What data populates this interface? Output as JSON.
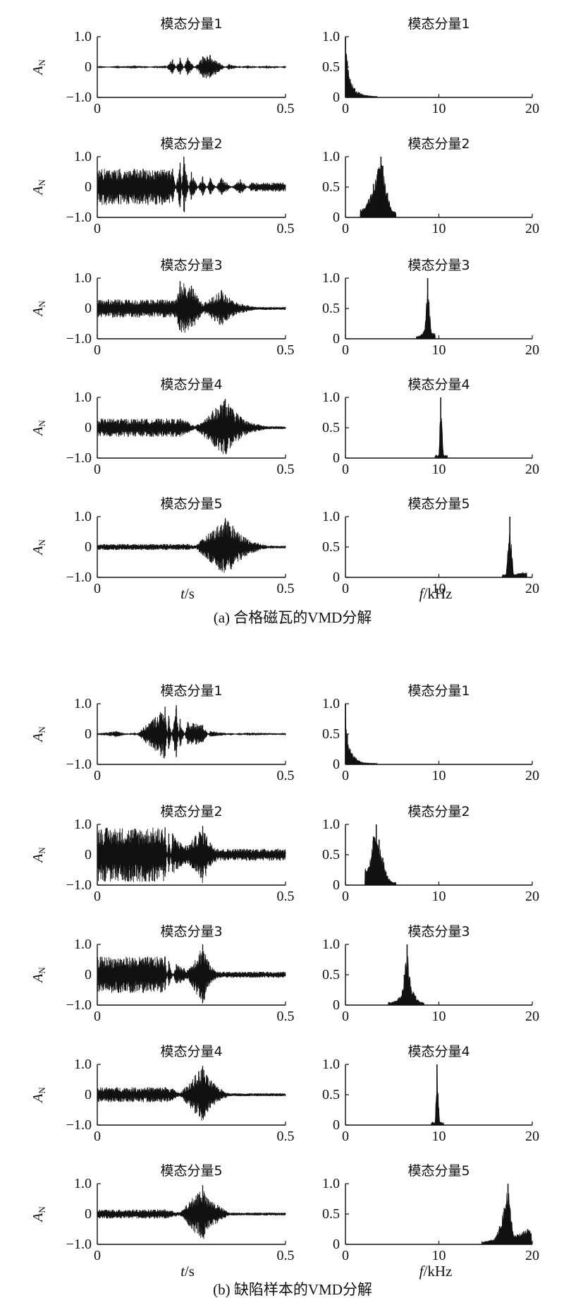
{
  "figure": {
    "caption_a": "(a) 合格磁瓦的VMD分解",
    "caption_b": "(b) 缺陷样本的VMD分解",
    "time_xlabel": {
      "var": "t",
      "unit": "/s"
    },
    "freq_xlabel": {
      "var": "f",
      "unit": "/kHz"
    },
    "ylabel": {
      "main": "A",
      "sub": "N"
    }
  },
  "chart_data": [
    {
      "type": "line",
      "group": "a",
      "title": "模态分量1",
      "x": [
        0,
        0.1,
        0.18,
        0.2,
        0.22,
        0.24,
        0.28,
        0.3,
        0.35,
        0.4,
        0.45,
        0.5
      ],
      "values": [
        0.02,
        -0.05,
        0.05,
        -0.25,
        0.3,
        -0.3,
        0.35,
        0.4,
        -0.1,
        0.05,
        -0.05,
        0.02
      ],
      "xlim": [
        0,
        0.5
      ],
      "ylim": [
        -1,
        1
      ],
      "xticks": [
        "0",
        "0.5"
      ],
      "yticks": [
        "1.0",
        "0",
        "−1.0"
      ]
    },
    {
      "type": "bar",
      "group": "a",
      "title": "模态分量1",
      "x": [
        0,
        0.2,
        0.5,
        1,
        1.5,
        2,
        3
      ],
      "values": [
        1.0,
        0.6,
        0.3,
        0.15,
        0.08,
        0.04,
        0.02
      ],
      "xlim": [
        0,
        20
      ],
      "ylim": [
        0,
        1
      ],
      "xticks": [
        "0",
        "10",
        "20"
      ],
      "yticks": [
        "1.0",
        "0.5",
        "0"
      ]
    },
    {
      "type": "line",
      "group": "a",
      "title": "模态分量2",
      "x": [
        0.2,
        0.22,
        0.23,
        0.25,
        0.28,
        0.3,
        0.33,
        0.38,
        0.41
      ],
      "values": [
        0.6,
        -0.8,
        1.0,
        -0.5,
        0.35,
        -0.3,
        0.3,
        -0.25,
        0.15
      ],
      "xlim": [
        0,
        0.5
      ],
      "ylim": [
        -1,
        1
      ],
      "xticks": [
        "0",
        "0.5"
      ],
      "yticks": [
        "1.0",
        "0",
        "−1.0"
      ]
    },
    {
      "type": "bar",
      "group": "a",
      "title": "模态分量2",
      "x": [
        2,
        2.5,
        3,
        3.5,
        3.8,
        4,
        4.5,
        5
      ],
      "values": [
        0.15,
        0.3,
        0.55,
        0.8,
        1.0,
        0.85,
        0.4,
        0.1
      ],
      "xlim": [
        0,
        20
      ],
      "ylim": [
        0,
        1
      ],
      "xticks": [
        "0",
        "10",
        "20"
      ],
      "yticks": [
        "1.0",
        "0.5",
        "0"
      ]
    },
    {
      "type": "line",
      "group": "a",
      "title": "模态分量3",
      "x": [
        0.21,
        0.22,
        0.25,
        0.28,
        0.33,
        0.34,
        0.37,
        0.42
      ],
      "values": [
        0.3,
        0.9,
        0.75,
        0.15,
        0.6,
        0.45,
        0.2,
        0.05
      ],
      "xlim": [
        0,
        0.5
      ],
      "ylim": [
        -1,
        1
      ],
      "xticks": [
        "0",
        "0.5"
      ],
      "yticks": [
        "1.0",
        "0",
        "−1.0"
      ]
    },
    {
      "type": "bar",
      "group": "a",
      "title": "模态分量3",
      "x": [
        8,
        8.5,
        8.8,
        9.2
      ],
      "values": [
        0.05,
        0.15,
        1.0,
        0.1
      ],
      "xlim": [
        0,
        20
      ],
      "ylim": [
        0,
        1
      ],
      "xticks": [
        "0",
        "10",
        "20"
      ],
      "yticks": [
        "1.0",
        "0.5",
        "0"
      ]
    },
    {
      "type": "line",
      "group": "a",
      "title": "模态分量4",
      "x": [
        0.22,
        0.24,
        0.26,
        0.34,
        0.36,
        0.4,
        0.45
      ],
      "values": [
        0.3,
        0.2,
        0.05,
        0.95,
        0.6,
        0.2,
        0.05
      ],
      "xlim": [
        0,
        0.5
      ],
      "ylim": [
        -1,
        1
      ],
      "xticks": [
        "0",
        "0.5"
      ],
      "yticks": [
        "1.0",
        "0",
        "−1.0"
      ]
    },
    {
      "type": "bar",
      "group": "a",
      "title": "模态分量4",
      "x": [
        10,
        10.2,
        10.5
      ],
      "values": [
        0.05,
        1.0,
        0.05
      ],
      "xlim": [
        0,
        20
      ],
      "ylim": [
        0,
        1
      ],
      "xticks": [
        "0",
        "10",
        "20"
      ],
      "yticks": [
        "1.0",
        "0.5",
        "0"
      ]
    },
    {
      "type": "line",
      "group": "a",
      "title": "模态分量5",
      "x": [
        0.24,
        0.26,
        0.34,
        0.36,
        0.4,
        0.45
      ],
      "values": [
        0.1,
        0.05,
        0.95,
        0.7,
        0.25,
        0.05
      ],
      "xlim": [
        0,
        0.5
      ],
      "ylim": [
        -1,
        1
      ],
      "xticks": [
        "0",
        "0.5"
      ],
      "yticks": [
        "1.0",
        "0",
        "−1.0"
      ]
    },
    {
      "type": "bar",
      "group": "a",
      "title": "模态分量5",
      "x": [
        17.2,
        17.6,
        18,
        19
      ],
      "values": [
        0.05,
        1.0,
        0.05,
        0.08
      ],
      "xlim": [
        0,
        20
      ],
      "ylim": [
        0,
        1
      ],
      "xticks": [
        "0",
        "10",
        "20"
      ],
      "yticks": [
        "1.0",
        "0.5",
        "0"
      ]
    },
    {
      "type": "line",
      "group": "b",
      "title": "模态分量1",
      "x": [
        0,
        0.05,
        0.1,
        0.18,
        0.19,
        0.21,
        0.22,
        0.24,
        0.28,
        0.3,
        0.4,
        0.5
      ],
      "values": [
        0.02,
        0.1,
        -0.05,
        0.9,
        -0.6,
        0.95,
        -0.5,
        0.4,
        0.3,
        -0.1,
        0.05,
        0.02
      ],
      "xlim": [
        0,
        0.5
      ],
      "ylim": [
        -1,
        1
      ],
      "xticks": [
        "0",
        "0.5"
      ],
      "yticks": [
        "1.0",
        "0",
        "−1.0"
      ]
    },
    {
      "type": "bar",
      "group": "b",
      "title": "模态分量1",
      "x": [
        0,
        0.2,
        0.5,
        1,
        1.5,
        2,
        3
      ],
      "values": [
        1.0,
        0.5,
        0.25,
        0.12,
        0.06,
        0.03,
        0.02
      ],
      "xlim": [
        0,
        20
      ],
      "ylim": [
        0,
        1
      ],
      "xticks": [
        "0",
        "10",
        "20"
      ],
      "yticks": [
        "1.0",
        "0.5",
        "0"
      ]
    },
    {
      "type": "line",
      "group": "b",
      "title": "模态分量2",
      "x": [
        0.18,
        0.19,
        0.2,
        0.22,
        0.24,
        0.28,
        0.3,
        0.32
      ],
      "values": [
        0.9,
        -0.7,
        0.7,
        0.4,
        0.3,
        0.95,
        0.4,
        0.2
      ],
      "xlim": [
        0,
        0.5
      ],
      "ylim": [
        -1,
        1
      ],
      "xticks": [
        "0",
        "0.5"
      ],
      "yticks": [
        "1.0",
        "0",
        "−1.0"
      ]
    },
    {
      "type": "bar",
      "group": "b",
      "title": "模态分量2",
      "x": [
        2.5,
        3,
        3.3,
        3.6,
        4,
        4.5,
        5
      ],
      "values": [
        0.3,
        0.8,
        1.0,
        0.75,
        0.45,
        0.15,
        0.05
      ],
      "xlim": [
        0,
        20
      ],
      "ylim": [
        0,
        1
      ],
      "xticks": [
        "0",
        "10",
        "20"
      ],
      "yticks": [
        "1.0",
        "0.5",
        "0"
      ]
    },
    {
      "type": "line",
      "group": "b",
      "title": "模态分量3",
      "x": [
        0.18,
        0.19,
        0.21,
        0.24,
        0.28,
        0.3,
        0.32
      ],
      "values": [
        0.6,
        -0.45,
        0.35,
        0.15,
        1.0,
        0.3,
        0.1
      ],
      "xlim": [
        0,
        0.5
      ],
      "ylim": [
        -1,
        1
      ],
      "xticks": [
        "0",
        "0.5"
      ],
      "yticks": [
        "1.0",
        "0",
        "−1.0"
      ]
    },
    {
      "type": "bar",
      "group": "b",
      "title": "模态分量3",
      "x": [
        5,
        6,
        6.3,
        6.6,
        7,
        7.5,
        8
      ],
      "values": [
        0.05,
        0.15,
        0.5,
        1.0,
        0.3,
        0.15,
        0.05
      ],
      "xlim": [
        0,
        20
      ],
      "ylim": [
        0,
        1
      ],
      "xticks": [
        "0",
        "10",
        "20"
      ],
      "yticks": [
        "1.0",
        "0.5",
        "0"
      ]
    },
    {
      "type": "line",
      "group": "b",
      "title": "模态分量4",
      "x": [
        0.18,
        0.2,
        0.22,
        0.28,
        0.29,
        0.32,
        0.35
      ],
      "values": [
        0.25,
        0.2,
        0.05,
        0.95,
        0.65,
        0.25,
        0.05
      ],
      "xlim": [
        0,
        0.5
      ],
      "ylim": [
        -1,
        1
      ],
      "xticks": [
        "0",
        "0.5"
      ],
      "yticks": [
        "1.0",
        "0",
        "−1.0"
      ]
    },
    {
      "type": "bar",
      "group": "b",
      "title": "模态分量4",
      "x": [
        9.6,
        9.8,
        10.1
      ],
      "values": [
        0.05,
        1.0,
        0.05
      ],
      "xlim": [
        0,
        20
      ],
      "ylim": [
        0,
        1
      ],
      "xticks": [
        "0",
        "10",
        "20"
      ],
      "yticks": [
        "1.0",
        "0.5",
        "0"
      ]
    },
    {
      "type": "line",
      "group": "b",
      "title": "模态分量5",
      "x": [
        0.18,
        0.2,
        0.22,
        0.28,
        0.29,
        0.32,
        0.35
      ],
      "values": [
        0.15,
        0.1,
        0.05,
        0.95,
        0.55,
        0.3,
        0.05
      ],
      "xlim": [
        0,
        0.5
      ],
      "ylim": [
        -1,
        1
      ],
      "xticks": [
        "0",
        "0.5"
      ],
      "yticks": [
        "1.0",
        "0",
        "−1.0"
      ]
    },
    {
      "type": "bar",
      "group": "b",
      "title": "模态分量5",
      "x": [
        15,
        16,
        16.5,
        17,
        17.4,
        18,
        19.5
      ],
      "values": [
        0.05,
        0.1,
        0.3,
        0.6,
        1.0,
        0.15,
        0.25
      ],
      "xlim": [
        0,
        20
      ],
      "ylim": [
        0,
        1
      ],
      "xticks": [
        "0",
        "10",
        "20"
      ],
      "yticks": [
        "1.0",
        "0.5",
        "0"
      ]
    }
  ]
}
